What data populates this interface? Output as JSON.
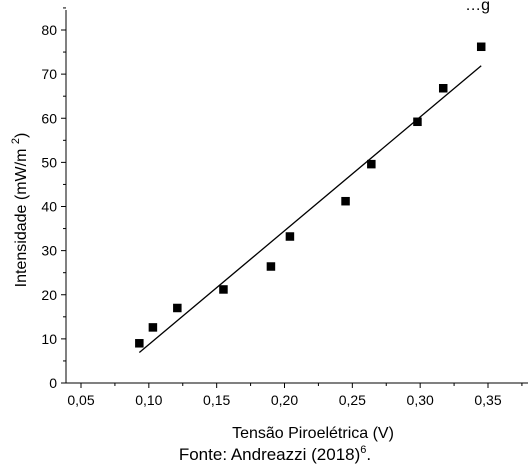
{
  "chart_data": {
    "type": "scatter",
    "title": "…g",
    "xlabel": "Tensão Piroelétrica (V)",
    "ylabel": "Intensidade (mW/m²)",
    "xlim": [
      0.05,
      0.37
    ],
    "ylim": [
      0,
      85
    ],
    "x_ticks": [
      "0,05",
      "0,10",
      "0,15",
      "0,20",
      "0,25",
      "0,30",
      "0,35"
    ],
    "y_ticks": [
      "0",
      "10",
      "20",
      "30",
      "40",
      "50",
      "60",
      "70",
      "80"
    ],
    "points": [
      {
        "x": 0.093,
        "y": 9.0
      },
      {
        "x": 0.103,
        "y": 12.6
      },
      {
        "x": 0.121,
        "y": 17.0
      },
      {
        "x": 0.155,
        "y": 21.2
      },
      {
        "x": 0.19,
        "y": 26.4
      },
      {
        "x": 0.204,
        "y": 33.2
      },
      {
        "x": 0.245,
        "y": 41.2
      },
      {
        "x": 0.264,
        "y": 49.6
      },
      {
        "x": 0.298,
        "y": 59.2
      },
      {
        "x": 0.317,
        "y": 66.8
      },
      {
        "x": 0.345,
        "y": 76.2
      }
    ],
    "fit_line": {
      "x": [
        0.093,
        0.345
      ],
      "y": [
        6.9,
        71.9
      ]
    },
    "grid": false
  },
  "caption": {
    "text": "Fonte: Andreazzi (2018)",
    "superscript": "6",
    "suffix": "."
  }
}
